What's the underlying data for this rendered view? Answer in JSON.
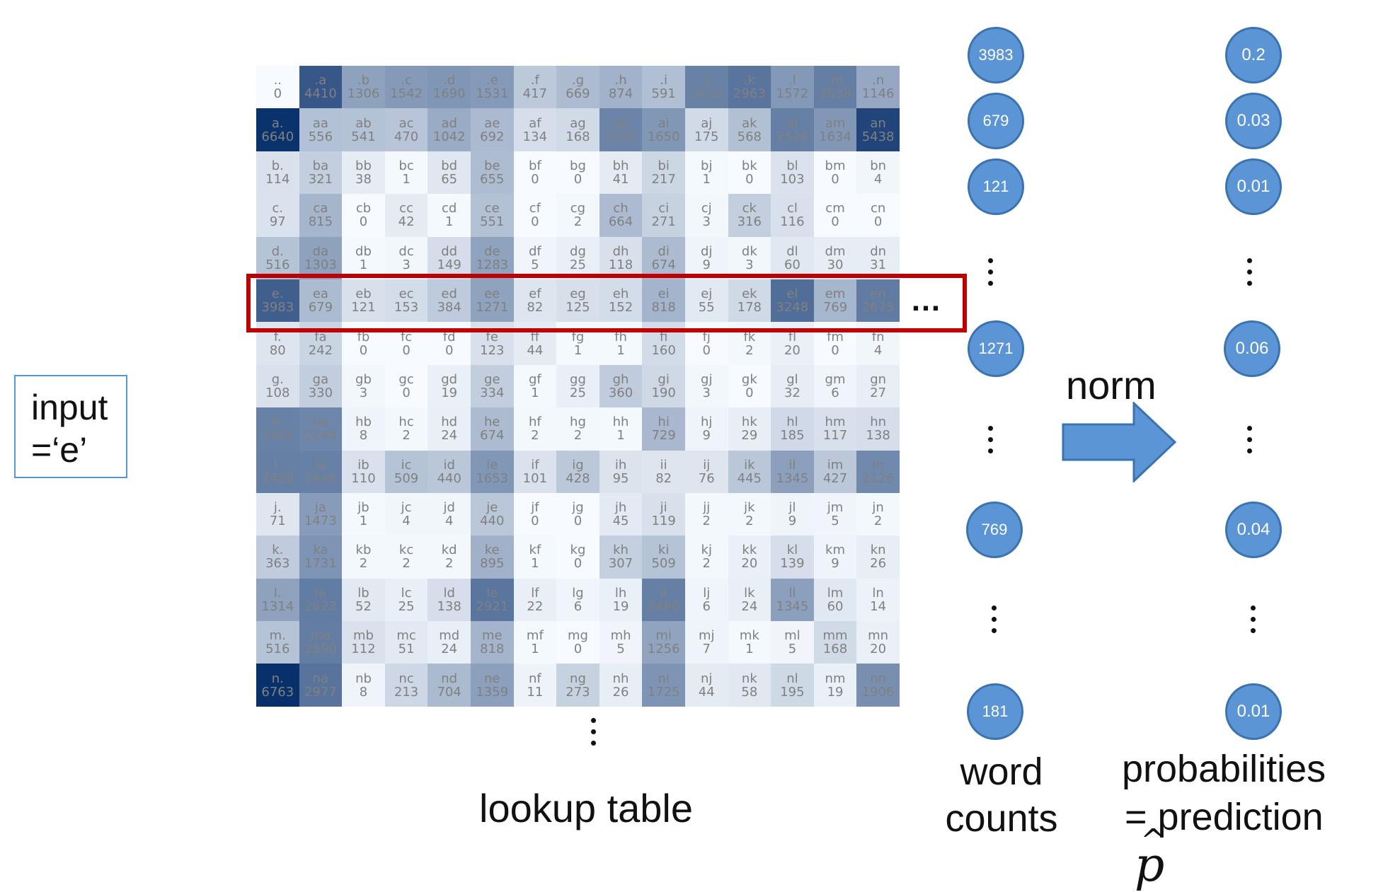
{
  "input_box": {
    "line1": "input",
    "line2": "=‘e’"
  },
  "lookup_table": {
    "label": "lookup table",
    "columns": 15,
    "max_count": 6763,
    "cells": [
      [
        "..",
        "0"
      ],
      [
        ".a",
        "4410"
      ],
      [
        ".b",
        "1306"
      ],
      [
        ".c",
        "1542"
      ],
      [
        ".d",
        "1690"
      ],
      [
        ".e",
        "1531"
      ],
      [
        ".f",
        "417"
      ],
      [
        ".g",
        "669"
      ],
      [
        ".h",
        "874"
      ],
      [
        ".i",
        "591"
      ],
      [
        ".j",
        "2422"
      ],
      [
        ".k",
        "2963"
      ],
      [
        ".l",
        "1572"
      ],
      [
        ".m",
        "2538"
      ],
      [
        ".n",
        "1146"
      ],
      [
        "a.",
        "6640"
      ],
      [
        "aa",
        "556"
      ],
      [
        "ab",
        "541"
      ],
      [
        "ac",
        "470"
      ],
      [
        "ad",
        "1042"
      ],
      [
        "ae",
        "692"
      ],
      [
        "af",
        "134"
      ],
      [
        "ag",
        "168"
      ],
      [
        "ah",
        "2332"
      ],
      [
        "ai",
        "1650"
      ],
      [
        "aj",
        "175"
      ],
      [
        "ak",
        "568"
      ],
      [
        "al",
        "2528"
      ],
      [
        "am",
        "1634"
      ],
      [
        "an",
        "5438"
      ],
      [
        "b.",
        "114"
      ],
      [
        "ba",
        "321"
      ],
      [
        "bb",
        "38"
      ],
      [
        "bc",
        "1"
      ],
      [
        "bd",
        "65"
      ],
      [
        "be",
        "655"
      ],
      [
        "bf",
        "0"
      ],
      [
        "bg",
        "0"
      ],
      [
        "bh",
        "41"
      ],
      [
        "bi",
        "217"
      ],
      [
        "bj",
        "1"
      ],
      [
        "bk",
        "0"
      ],
      [
        "bl",
        "103"
      ],
      [
        "bm",
        "0"
      ],
      [
        "bn",
        "4"
      ],
      [
        "c.",
        "97"
      ],
      [
        "ca",
        "815"
      ],
      [
        "cb",
        "0"
      ],
      [
        "cc",
        "42"
      ],
      [
        "cd",
        "1"
      ],
      [
        "ce",
        "551"
      ],
      [
        "cf",
        "0"
      ],
      [
        "cg",
        "2"
      ],
      [
        "ch",
        "664"
      ],
      [
        "ci",
        "271"
      ],
      [
        "cj",
        "3"
      ],
      [
        "ck",
        "316"
      ],
      [
        "cl",
        "116"
      ],
      [
        "cm",
        "0"
      ],
      [
        "cn",
        "0"
      ],
      [
        "d.",
        "516"
      ],
      [
        "da",
        "1303"
      ],
      [
        "db",
        "1"
      ],
      [
        "dc",
        "3"
      ],
      [
        "dd",
        "149"
      ],
      [
        "de",
        "1283"
      ],
      [
        "df",
        "5"
      ],
      [
        "dg",
        "25"
      ],
      [
        "dh",
        "118"
      ],
      [
        "di",
        "674"
      ],
      [
        "dj",
        "9"
      ],
      [
        "dk",
        "3"
      ],
      [
        "dl",
        "60"
      ],
      [
        "dm",
        "30"
      ],
      [
        "dn",
        "31"
      ],
      [
        "e.",
        "3983"
      ],
      [
        "ea",
        "679"
      ],
      [
        "eb",
        "121"
      ],
      [
        "ec",
        "153"
      ],
      [
        "ed",
        "384"
      ],
      [
        "ee",
        "1271"
      ],
      [
        "ef",
        "82"
      ],
      [
        "eg",
        "125"
      ],
      [
        "eh",
        "152"
      ],
      [
        "ei",
        "818"
      ],
      [
        "ej",
        "55"
      ],
      [
        "ek",
        "178"
      ],
      [
        "el",
        "3248"
      ],
      [
        "em",
        "769"
      ],
      [
        "en",
        "2675"
      ],
      [
        "f.",
        "80"
      ],
      [
        "fa",
        "242"
      ],
      [
        "fb",
        "0"
      ],
      [
        "fc",
        "0"
      ],
      [
        "fd",
        "0"
      ],
      [
        "fe",
        "123"
      ],
      [
        "ff",
        "44"
      ],
      [
        "fg",
        "1"
      ],
      [
        "fh",
        "1"
      ],
      [
        "fi",
        "160"
      ],
      [
        "fj",
        "0"
      ],
      [
        "fk",
        "2"
      ],
      [
        "fl",
        "20"
      ],
      [
        "fm",
        "0"
      ],
      [
        "fn",
        "4"
      ],
      [
        "g.",
        "108"
      ],
      [
        "ga",
        "330"
      ],
      [
        "gb",
        "3"
      ],
      [
        "gc",
        "0"
      ],
      [
        "gd",
        "19"
      ],
      [
        "ge",
        "334"
      ],
      [
        "gf",
        "1"
      ],
      [
        "gg",
        "25"
      ],
      [
        "gh",
        "360"
      ],
      [
        "gi",
        "190"
      ],
      [
        "gj",
        "3"
      ],
      [
        "gk",
        "0"
      ],
      [
        "gl",
        "32"
      ],
      [
        "gm",
        "6"
      ],
      [
        "gn",
        "27"
      ],
      [
        "h.",
        "2409"
      ],
      [
        "ha",
        "2244"
      ],
      [
        "hb",
        "8"
      ],
      [
        "hc",
        "2"
      ],
      [
        "hd",
        "24"
      ],
      [
        "he",
        "674"
      ],
      [
        "hf",
        "2"
      ],
      [
        "hg",
        "2"
      ],
      [
        "hh",
        "1"
      ],
      [
        "hi",
        "729"
      ],
      [
        "hj",
        "9"
      ],
      [
        "hk",
        "29"
      ],
      [
        "hl",
        "185"
      ],
      [
        "hm",
        "117"
      ],
      [
        "hn",
        "138"
      ],
      [
        "i.",
        "2489"
      ],
      [
        "ia",
        "2445"
      ],
      [
        "ib",
        "110"
      ],
      [
        "ic",
        "509"
      ],
      [
        "id",
        "440"
      ],
      [
        "ie",
        "1653"
      ],
      [
        "if",
        "101"
      ],
      [
        "ig",
        "428"
      ],
      [
        "ih",
        "95"
      ],
      [
        "ii",
        "82"
      ],
      [
        "ij",
        "76"
      ],
      [
        "ik",
        "445"
      ],
      [
        "il",
        "1345"
      ],
      [
        "im",
        "427"
      ],
      [
        "in",
        "2126"
      ],
      [
        "j.",
        "71"
      ],
      [
        "ja",
        "1473"
      ],
      [
        "jb",
        "1"
      ],
      [
        "jc",
        "4"
      ],
      [
        "jd",
        "4"
      ],
      [
        "je",
        "440"
      ],
      [
        "jf",
        "0"
      ],
      [
        "jg",
        "0"
      ],
      [
        "jh",
        "45"
      ],
      [
        "ji",
        "119"
      ],
      [
        "jj",
        "2"
      ],
      [
        "jk",
        "2"
      ],
      [
        "jl",
        "9"
      ],
      [
        "jm",
        "5"
      ],
      [
        "jn",
        "2"
      ],
      [
        "k.",
        "363"
      ],
      [
        "ka",
        "1731"
      ],
      [
        "kb",
        "2"
      ],
      [
        "kc",
        "2"
      ],
      [
        "kd",
        "2"
      ],
      [
        "ke",
        "895"
      ],
      [
        "kf",
        "1"
      ],
      [
        "kg",
        "0"
      ],
      [
        "kh",
        "307"
      ],
      [
        "ki",
        "509"
      ],
      [
        "kj",
        "2"
      ],
      [
        "kk",
        "20"
      ],
      [
        "kl",
        "139"
      ],
      [
        "km",
        "9"
      ],
      [
        "kn",
        "26"
      ],
      [
        "l.",
        "1314"
      ],
      [
        "la",
        "2623"
      ],
      [
        "lb",
        "52"
      ],
      [
        "lc",
        "25"
      ],
      [
        "ld",
        "138"
      ],
      [
        "le",
        "2921"
      ],
      [
        "lf",
        "22"
      ],
      [
        "lg",
        "6"
      ],
      [
        "lh",
        "19"
      ],
      [
        "li",
        "2480"
      ],
      [
        "lj",
        "6"
      ],
      [
        "lk",
        "24"
      ],
      [
        "ll",
        "1345"
      ],
      [
        "lm",
        "60"
      ],
      [
        "ln",
        "14"
      ],
      [
        "m.",
        "516"
      ],
      [
        "ma",
        "2590"
      ],
      [
        "mb",
        "112"
      ],
      [
        "mc",
        "51"
      ],
      [
        "md",
        "24"
      ],
      [
        "me",
        "818"
      ],
      [
        "mf",
        "1"
      ],
      [
        "mg",
        "0"
      ],
      [
        "mh",
        "5"
      ],
      [
        "mi",
        "1256"
      ],
      [
        "mj",
        "7"
      ],
      [
        "mk",
        "1"
      ],
      [
        "ml",
        "5"
      ],
      [
        "mm",
        "168"
      ],
      [
        "mn",
        "20"
      ],
      [
        "n.",
        "6763"
      ],
      [
        "na",
        "2977"
      ],
      [
        "nb",
        "8"
      ],
      [
        "nc",
        "213"
      ],
      [
        "nd",
        "704"
      ],
      [
        "ne",
        "1359"
      ],
      [
        "nf",
        "11"
      ],
      [
        "ng",
        "273"
      ],
      [
        "nh",
        "26"
      ],
      [
        "ni",
        "1725"
      ],
      [
        "nj",
        "44"
      ],
      [
        "nk",
        "58"
      ],
      [
        "nl",
        "195"
      ],
      [
        "nm",
        "19"
      ],
      [
        "nn",
        "1906"
      ]
    ],
    "highlighted_row": "e",
    "row_continuation": "…"
  },
  "word_counts": {
    "label_line1": "word",
    "label_line2": "counts",
    "top": [
      "3983",
      "679",
      "121"
    ],
    "middle": [
      "1271"
    ],
    "lower": [
      "769"
    ],
    "bottom": [
      "181"
    ]
  },
  "norm": {
    "label": "norm"
  },
  "probabilities": {
    "label_line1": "probabilities",
    "label_line2": "= prediction",
    "symbol": "p",
    "top": [
      "0.2",
      "0.03",
      "0.01"
    ],
    "middle": [
      "0.06"
    ],
    "lower": [
      "0.04"
    ],
    "bottom": [
      "0.01"
    ]
  },
  "colors": {
    "heat_low": "#f7fbff",
    "heat_high": "#08306b",
    "highlight_border": "#c00000",
    "node_fill": "#5b95d5",
    "arrow_fill": "#5b95d5"
  }
}
